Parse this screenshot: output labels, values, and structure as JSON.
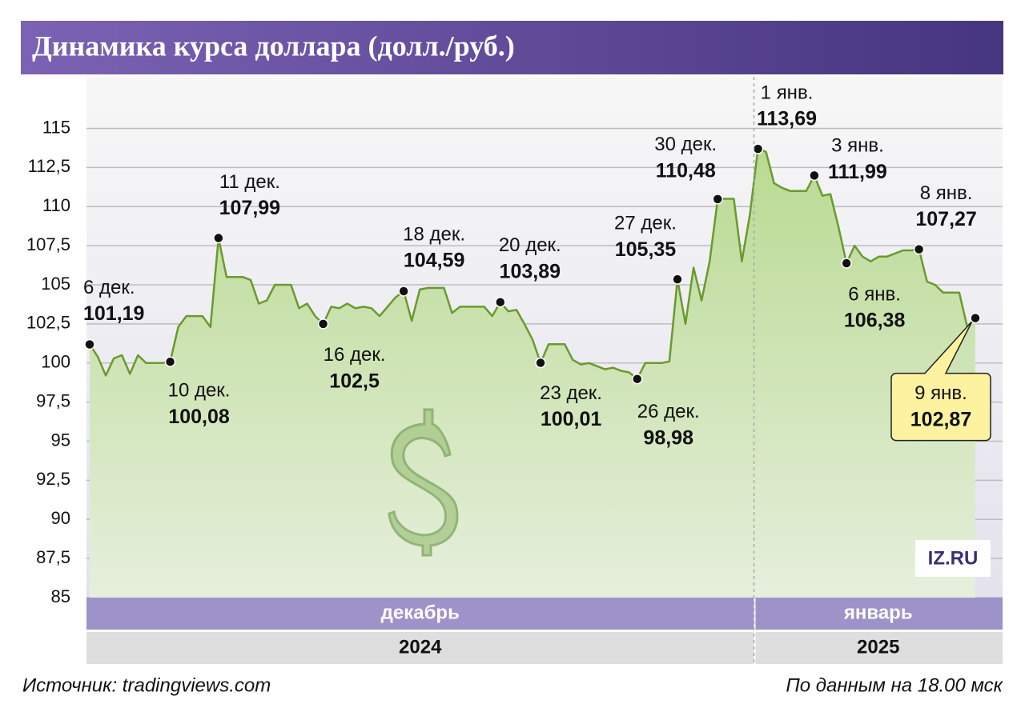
{
  "chart_data": {
    "type": "area",
    "title": "Динамика курса доллара (долл./руб.)",
    "color": "#6a9a2e",
    "ylim": [
      85,
      118.3
    ],
    "yticks": [
      85,
      {
        "value": 87.5,
        "label": "87,5"
      },
      90,
      {
        "value": 92.5,
        "label": "92,5"
      },
      95,
      {
        "value": 97.5,
        "label": "97,5"
      },
      100,
      {
        "value": 102.5,
        "label": "102,5"
      },
      105,
      {
        "value": 107.5,
        "label": "107,5"
      },
      110,
      {
        "value": 112.5,
        "label": "112,5"
      },
      115
    ],
    "grid": true,
    "categories": [
      "декабрь",
      "декабрь",
      "декабрь",
      "декабрь",
      "декабрь",
      "декабрь",
      "декабрь",
      "декабрь",
      "декабрь",
      "декабрь",
      "декабрь",
      "декабрь",
      "декабрь",
      "декабрь",
      "декабрь",
      "декабрь",
      "декабрь",
      "декабрь",
      "декабрь",
      "декабрь",
      "декабрь",
      "декабрь",
      "декабрь",
      "декабрь",
      "декабрь",
      "декабрь",
      "декабрь",
      "декабрь",
      "декабрь",
      "декабрь",
      "декабрь",
      "декабрь",
      "декабрь",
      "декабрь",
      "декабрь",
      "декабрь",
      "декабрь",
      "декабрь",
      "декабрь",
      "декабрь",
      "декабрь",
      "декабрь",
      "декабрь",
      "декабрь",
      "декабрь",
      "декабрь",
      "декабрь",
      "декабрь",
      "декабрь",
      "декабрь",
      "декабрь",
      "декабрь",
      "декабрь",
      "декабрь",
      "декабрь",
      "декабрь",
      "декабрь",
      "декабрь",
      "декабрь",
      "декабрь",
      "декабрь",
      "декабрь",
      "декабрь",
      "декабрь",
      "декабрь",
      "декабрь",
      "декабрь",
      "декабрь",
      "декабрь",
      "декабрь",
      "декабрь",
      "декабрь",
      "декабрь",
      "декабрь",
      "декабрь",
      "декабрь",
      "декабрь",
      "декабрь",
      "декабрь",
      "декабрь",
      "декабрь",
      "декабрь",
      "декабрь",
      "январь",
      "январь",
      "январь",
      "январь",
      "январь",
      "январь",
      "январь",
      "январь",
      "январь",
      "январь",
      "январь",
      "январь",
      "январь",
      "январь",
      "январь",
      "январь",
      "январь",
      "январь",
      "январь",
      "январь",
      "январь",
      "январь",
      "январь",
      "январь",
      "январь",
      "январь",
      "январь",
      "январь"
    ],
    "years": [
      "2024",
      "2024",
      "2024",
      "2024",
      "2024",
      "2024",
      "2024",
      "2024",
      "2024",
      "2024",
      "2024",
      "2024",
      "2024",
      "2024",
      "2024",
      "2024",
      "2024",
      "2024",
      "2024",
      "2024",
      "2024",
      "2024",
      "2024",
      "2024",
      "2024",
      "2024",
      "2024",
      "2024",
      "2024",
      "2024",
      "2024",
      "2024",
      "2024",
      "2024",
      "2024",
      "2024",
      "2024",
      "2024",
      "2024",
      "2024",
      "2024",
      "2024",
      "2024",
      "2024",
      "2024",
      "2024",
      "2024",
      "2024",
      "2024",
      "2024",
      "2024",
      "2024",
      "2024",
      "2024",
      "2024",
      "2024",
      "2024",
      "2024",
      "2024",
      "2024",
      "2024",
      "2024",
      "2024",
      "2024",
      "2024",
      "2024",
      "2024",
      "2024",
      "2024",
      "2024",
      "2024",
      "2024",
      "2024",
      "2024",
      "2024",
      "2024",
      "2024",
      "2024",
      "2024",
      "2024",
      "2024",
      "2024",
      "2024",
      "2025",
      "2025",
      "2025",
      "2025",
      "2025",
      "2025",
      "2025",
      "2025",
      "2025",
      "2025",
      "2025",
      "2025",
      "2025",
      "2025",
      "2025",
      "2025",
      "2025",
      "2025",
      "2025",
      "2025",
      "2025",
      "2025",
      "2025",
      "2025",
      "2025",
      "2025",
      "2025",
      "2025"
    ],
    "values": [
      101.19,
      100.4,
      99.2,
      100.3,
      100.5,
      99.3,
      100.5,
      100.0,
      100.0,
      100.0,
      100.08,
      102.3,
      103.0,
      103.0,
      103.0,
      102.3,
      107.99,
      105.5,
      105.5,
      105.5,
      105.3,
      103.8,
      104.0,
      105.0,
      105.0,
      105.0,
      103.5,
      103.8,
      103.0,
      102.5,
      103.6,
      103.5,
      103.8,
      103.5,
      103.6,
      103.5,
      103.0,
      103.6,
      104.2,
      104.59,
      102.7,
      104.7,
      104.8,
      104.8,
      104.8,
      103.2,
      103.6,
      103.6,
      103.6,
      103.6,
      103.0,
      103.89,
      103.3,
      103.4,
      102.5,
      101.5,
      100.01,
      101.2,
      101.2,
      101.2,
      100.2,
      99.9,
      100.0,
      99.8,
      99.6,
      99.7,
      99.5,
      99.4,
      98.98,
      100.0,
      100.0,
      100.0,
      100.1,
      105.35,
      102.5,
      106.1,
      104.0,
      106.5,
      110.48,
      110.5,
      110.5,
      106.5,
      109.5,
      113.69,
      113.5,
      111.5,
      111.2,
      111.0,
      111.0,
      111.0,
      111.99,
      110.7,
      110.8,
      108.7,
      106.38,
      107.5,
      106.8,
      106.5,
      106.8,
      106.8,
      107.0,
      107.2,
      107.2,
      107.27,
      105.2,
      105.0,
      104.5,
      104.5,
      104.5,
      102.3,
      102.87
    ],
    "point_labels": [
      "6 дек.",
      null,
      null,
      null,
      null,
      null,
      null,
      null,
      null,
      null,
      "10 дек.",
      null,
      null,
      null,
      null,
      null,
      "11 дек.",
      null,
      null,
      null,
      null,
      null,
      null,
      null,
      null,
      null,
      null,
      null,
      null,
      "16 дек.",
      null,
      null,
      null,
      null,
      null,
      null,
      null,
      null,
      null,
      "18 дек.",
      null,
      null,
      null,
      null,
      null,
      null,
      null,
      null,
      null,
      null,
      null,
      "20 дек.",
      null,
      null,
      null,
      null,
      "23 дек.",
      null,
      null,
      null,
      null,
      null,
      null,
      null,
      null,
      null,
      null,
      null,
      "26 дек.",
      null,
      null,
      null,
      null,
      "27 дек.",
      null,
      null,
      null,
      null,
      "30 дек.",
      null,
      null,
      null,
      null,
      "1 янв.",
      null,
      null,
      null,
      null,
      null,
      null,
      "3 янв.",
      null,
      null,
      null,
      "6 янв.",
      null,
      null,
      null,
      null,
      null,
      null,
      null,
      null,
      "8 янв.",
      null,
      null,
      null,
      null,
      null,
      null,
      "9 янв."
    ],
    "value_labels": [
      "101,19",
      null,
      null,
      null,
      null,
      null,
      null,
      null,
      null,
      null,
      "100,08",
      null,
      null,
      null,
      null,
      null,
      "107,99",
      null,
      null,
      null,
      null,
      null,
      null,
      null,
      null,
      null,
      null,
      null,
      null,
      "102,5",
      null,
      null,
      null,
      null,
      null,
      null,
      null,
      null,
      null,
      "104,59",
      null,
      null,
      null,
      null,
      null,
      null,
      null,
      null,
      null,
      null,
      null,
      "103,89",
      null,
      null,
      null,
      null,
      "100,01",
      null,
      null,
      null,
      null,
      null,
      null,
      null,
      null,
      null,
      null,
      null,
      "98,98",
      null,
      null,
      null,
      null,
      "105,35",
      null,
      null,
      null,
      null,
      "110,48",
      null,
      null,
      null,
      null,
      "113,69",
      null,
      null,
      null,
      null,
      null,
      null,
      "111,99",
      null,
      null,
      null,
      "106,38",
      null,
      null,
      null,
      null,
      null,
      null,
      null,
      null,
      "107,27",
      null,
      null,
      null,
      null,
      null,
      null,
      "102,87"
    ],
    "source": "Источник: tradingviews.com",
    "note": "По данным на 18.00 мск",
    "logo": "IZ.RU"
  }
}
